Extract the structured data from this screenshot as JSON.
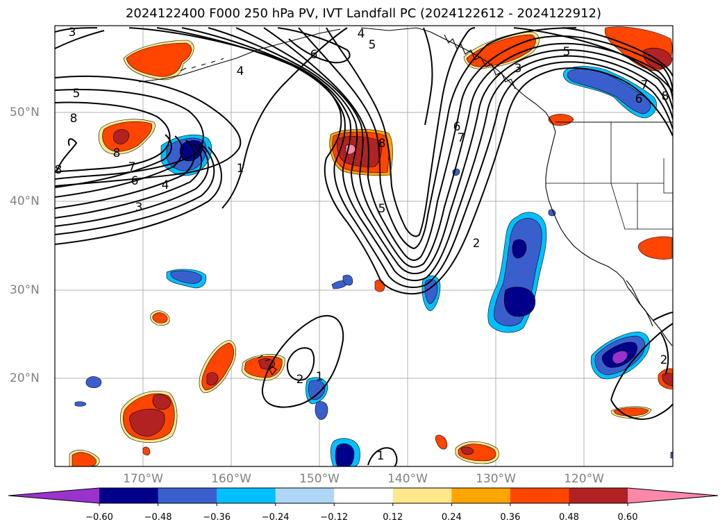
{
  "title": "2024122400 F000 250 hPa PV, IVT Landfall PC (2024122612 - 2024122912)",
  "latitudes": [
    "50°N",
    "40°N",
    "30°N",
    "20°N"
  ],
  "longitudes": [
    "170°W",
    "160°W",
    "150°W",
    "140°W",
    "130°W",
    "120°W"
  ],
  "colorbar": {
    "ticks": [
      "−0.60",
      "−0.48",
      "−0.36",
      "−0.24",
      "−0.12",
      "0.12",
      "0.24",
      "0.36",
      "0.48",
      "0.60"
    ],
    "colors": [
      "#9933cc",
      "#00008b",
      "#3a5fcd",
      "#00bfff",
      "#add8f5",
      "#ffffff",
      "#ffe88a",
      "#ffa500",
      "#ff4500",
      "#b22222",
      "#ff88aa"
    ]
  },
  "contour_labels": [
    "3",
    "4",
    "5",
    "6",
    "5",
    "8",
    "4",
    "8",
    "8",
    "7",
    "6",
    "4",
    "3",
    "1",
    "8",
    "5",
    "6",
    "7",
    "2",
    "3",
    "5",
    "7",
    "6",
    "8",
    "2",
    "1",
    "2",
    "1"
  ],
  "colors": {
    "neg_strong": "#00008b",
    "neg_mid": "#3a5fcd",
    "neg_light": "#00bfff",
    "pos_light": "#ffa500",
    "pos_mid": "#ff4500",
    "pos_strong": "#b22222",
    "pos_max": "#ff88aa",
    "grid": "#b0b0b0",
    "contour": "#000000"
  }
}
